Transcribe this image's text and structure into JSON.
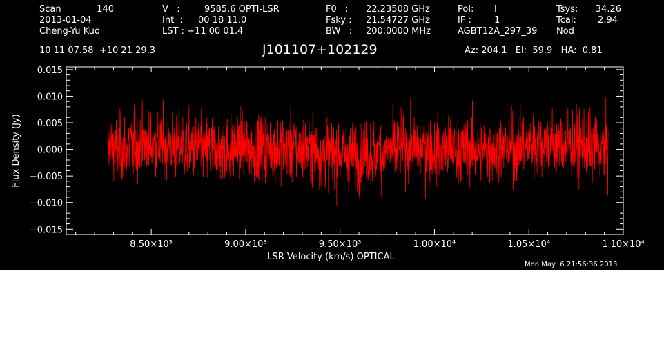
{
  "header": {
    "scan_label": "Scan",
    "scan_value": "140",
    "date": "2013-01-04",
    "observer": "Cheng-Yu Kuo",
    "v_label": "V   :",
    "v_value": "9585.6 OPTI-LSR",
    "int_label": "Int  :",
    "int_value": "00 18 11.0",
    "lst_label": "LST : +11 00 01.4",
    "f0_label": "F0   :",
    "f0_value": "22.23508 GHz",
    "fsky_label": "Fsky :",
    "fsky_value": "21.54727 GHz",
    "bw_label": "BW   :",
    "bw_value": "200.0000 MHz",
    "pol_label": "Pol:",
    "pol_value": "I",
    "if_label": "IF :",
    "if_value": "1",
    "project": "AGBT12A_297_39",
    "tsys_label": "Tsys:",
    "tsys_value": "34.26",
    "tcal_label": "Tcal:",
    "tcal_value": "2.94",
    "mode": "Nod",
    "coords": "10 11 07.58  +10 21 29.3",
    "source": "J101107+102129",
    "az_el_ha": "Az: 204.1   El:  59.9   HA:  0.81"
  },
  "timestamp": "Mon May  6 21:56:36 2013",
  "chart_data": {
    "type": "line",
    "title": "J101107+102129",
    "xlabel": "LSR Velocity (km/s) OPTICAL",
    "ylabel": "Flux Density (Jy)",
    "xlim": [
      8050,
      11000
    ],
    "ylim": [
      -0.016,
      0.0155
    ],
    "x_range_data": [
      8270,
      10920
    ],
    "noise_rms": 0.0031,
    "x_ticks": [
      {
        "value": 8500,
        "label": "8.50×10³"
      },
      {
        "value": 9000,
        "label": "9.00×10³"
      },
      {
        "value": 9500,
        "label": "9.50×10³"
      },
      {
        "value": 10000,
        "label": "1.00×10⁴"
      },
      {
        "value": 10500,
        "label": "1.05×10⁴"
      },
      {
        "value": 11000,
        "label": "1.10×10⁴"
      }
    ],
    "y_ticks": [
      {
        "value": 0.015,
        "label": "0.015"
      },
      {
        "value": 0.01,
        "label": "0.010"
      },
      {
        "value": 0.005,
        "label": "0.005"
      },
      {
        "value": 0.0,
        "label": "0.000"
      },
      {
        "value": -0.005,
        "label": "−0.005"
      },
      {
        "value": -0.01,
        "label": "−0.010"
      },
      {
        "value": -0.015,
        "label": "−0.015"
      }
    ],
    "series": [
      {
        "color": "#ff0000"
      }
    ],
    "grid": false
  },
  "colors": {
    "background": "#000000",
    "foreground": "#ffffff",
    "trace": "#ff0000"
  }
}
